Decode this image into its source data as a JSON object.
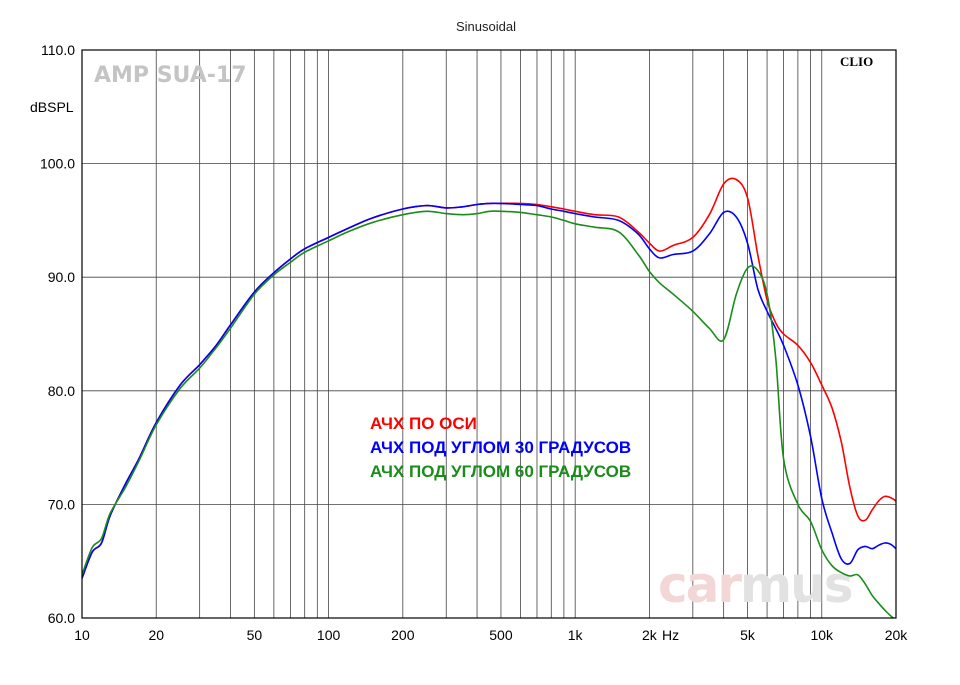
{
  "chart_data": {
    "type": "line",
    "title": "Sinusoidal",
    "ylabel": "dBSPL",
    "xunit": "Hz",
    "xscale": "log",
    "xlim": [
      10,
      20000
    ],
    "ylim": [
      60,
      110
    ],
    "grid": true,
    "legend_position": "center",
    "y_ticks": [
      "60.0",
      "70.0",
      "80.0",
      "90.0",
      "100.0",
      "110.0"
    ],
    "x_ticks": [
      {
        "value": 10,
        "label": "10"
      },
      {
        "value": 20,
        "label": "20"
      },
      {
        "value": 50,
        "label": "50"
      },
      {
        "value": 100,
        "label": "100"
      },
      {
        "value": 200,
        "label": "200"
      },
      {
        "value": 500,
        "label": "500"
      },
      {
        "value": 1000,
        "label": "1k"
      },
      {
        "value": 2000,
        "label": "2k"
      },
      {
        "value": 5000,
        "label": "5k"
      },
      {
        "value": 10000,
        "label": "10k"
      },
      {
        "value": 20000,
        "label": "20k"
      }
    ],
    "series": [
      {
        "name": "АЧХ ПО ОСИ",
        "color": "#ff0000",
        "x": [
          10,
          11,
          12,
          13,
          15,
          17,
          20,
          25,
          30,
          35,
          40,
          50,
          60,
          70,
          80,
          100,
          120,
          150,
          200,
          250,
          300,
          350,
          400,
          450,
          500,
          600,
          700,
          800,
          900,
          1000,
          1200,
          1500,
          1800,
          2000,
          2200,
          2500,
          3000,
          3500,
          4000,
          4500,
          5000,
          5500,
          6000,
          6500,
          7000,
          8000,
          9000,
          10000,
          11000,
          12000,
          13000,
          14000,
          15000,
          16000,
          17000,
          18000,
          19000,
          20000
        ],
        "y": [
          63.5,
          65.8,
          66.6,
          69.0,
          71.8,
          74.0,
          77.2,
          80.5,
          82.3,
          84.0,
          85.8,
          88.7,
          90.4,
          91.6,
          92.5,
          93.5,
          94.3,
          95.2,
          96.0,
          96.3,
          96.1,
          96.2,
          96.4,
          96.5,
          96.5,
          96.5,
          96.4,
          96.2,
          96.0,
          95.8,
          95.5,
          95.3,
          94.0,
          93.0,
          92.3,
          92.8,
          93.5,
          95.5,
          98.2,
          98.6,
          97.0,
          92.0,
          88.0,
          86.0,
          85.0,
          84.0,
          82.5,
          80.5,
          78.5,
          75.5,
          71.5,
          69.0,
          68.6,
          69.5,
          70.3,
          70.7,
          70.6,
          70.3
        ]
      },
      {
        "name": "АЧХ ПОД УГЛОМ 30 ГРАДУСОВ",
        "color": "#0000ff",
        "x": [
          10,
          11,
          12,
          13,
          15,
          17,
          20,
          25,
          30,
          35,
          40,
          50,
          60,
          70,
          80,
          100,
          120,
          150,
          200,
          250,
          300,
          350,
          400,
          450,
          500,
          600,
          700,
          800,
          900,
          1000,
          1200,
          1500,
          1800,
          2000,
          2200,
          2500,
          3000,
          3500,
          4000,
          4500,
          5000,
          5500,
          6000,
          6500,
          7000,
          8000,
          9000,
          10000,
          11000,
          12000,
          13000,
          14000,
          15000,
          16000,
          17000,
          18000,
          19000,
          20000
        ],
        "y": [
          63.5,
          65.8,
          66.6,
          69.0,
          71.8,
          74.0,
          77.2,
          80.5,
          82.3,
          84.0,
          85.8,
          88.7,
          90.4,
          91.6,
          92.5,
          93.5,
          94.3,
          95.2,
          96.0,
          96.3,
          96.1,
          96.2,
          96.4,
          96.5,
          96.5,
          96.4,
          96.3,
          96.0,
          95.8,
          95.6,
          95.3,
          95.0,
          93.8,
          92.5,
          91.7,
          92.0,
          92.3,
          93.8,
          95.7,
          95.3,
          93.0,
          89.0,
          87.0,
          85.5,
          84.0,
          80.5,
          76.0,
          70.5,
          67.5,
          65.2,
          64.8,
          66.0,
          66.3,
          66.1,
          66.4,
          66.6,
          66.5,
          66.1
        ]
      },
      {
        "name": "АЧХ ПОД УГЛОМ 60 ГРАДУСОВ",
        "color": "#1a8c1a",
        "x": [
          10,
          11,
          12,
          13,
          15,
          17,
          20,
          25,
          30,
          35,
          40,
          50,
          60,
          70,
          80,
          100,
          120,
          150,
          200,
          250,
          300,
          350,
          400,
          450,
          500,
          600,
          700,
          800,
          900,
          1000,
          1200,
          1500,
          1800,
          2000,
          2200,
          2500,
          3000,
          3500,
          4000,
          4500,
          5000,
          5500,
          6000,
          6500,
          7000,
          8000,
          9000,
          10000,
          11000,
          12000,
          13000,
          14000,
          15000,
          16000,
          17000,
          18000,
          19000,
          20000
        ],
        "y": [
          63.8,
          66.2,
          67.0,
          69.2,
          71.5,
          73.8,
          77.0,
          80.2,
          82.0,
          83.8,
          85.5,
          88.5,
          90.2,
          91.3,
          92.2,
          93.2,
          94.0,
          94.8,
          95.5,
          95.8,
          95.6,
          95.5,
          95.6,
          95.8,
          95.8,
          95.7,
          95.5,
          95.3,
          95.0,
          94.7,
          94.4,
          94.0,
          92.0,
          90.5,
          89.5,
          88.5,
          87.0,
          85.5,
          84.5,
          88.5,
          90.8,
          90.6,
          88.5,
          83.0,
          74.0,
          70.0,
          68.5,
          66.0,
          64.6,
          64.0,
          63.7,
          63.8,
          63.0,
          62.0,
          61.3,
          60.7,
          60.2,
          59.8
        ]
      }
    ]
  },
  "header": {
    "model_label": "AMP SUA-17",
    "brand_label": "CLIO"
  },
  "watermark": {
    "text_part1": "car",
    "text_part2": "mus",
    "color1": "#f3d6d6",
    "color2": "#e2e2e2"
  },
  "colors": {
    "grid": "#444444",
    "plot_border": "#000000"
  }
}
